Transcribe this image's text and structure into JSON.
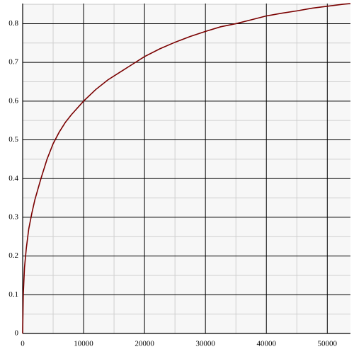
{
  "chart_data": {
    "type": "line",
    "x": [
      0,
      100,
      300,
      600,
      1000,
      1500,
      2000,
      3000,
      4000,
      5000,
      6000,
      7000,
      8000,
      10000,
      12000,
      14000,
      16000,
      18000,
      20000,
      22500,
      25000,
      27500,
      30000,
      32500,
      35000,
      37500,
      40000,
      42500,
      45000,
      47500,
      50000,
      52500,
      53800
    ],
    "series": [
      {
        "color": "#7a0000",
        "values": [
          0,
          0.1,
          0.17,
          0.22,
          0.27,
          0.31,
          0.345,
          0.4,
          0.45,
          0.49,
          0.52,
          0.545,
          0.565,
          0.6,
          0.63,
          0.655,
          0.675,
          0.695,
          0.715,
          0.735,
          0.752,
          0.767,
          0.78,
          0.792,
          0.8,
          0.81,
          0.82,
          0.827,
          0.833,
          0.84,
          0.845,
          0.85,
          0.852
        ]
      }
    ],
    "xlim": [
      0,
      53800
    ],
    "ylim": [
      0,
      0.852
    ],
    "xticks": [
      0,
      10000,
      20000,
      30000,
      40000,
      50000
    ],
    "yticks": [
      0,
      0.1,
      0.2,
      0.3,
      0.4,
      0.5,
      0.6,
      0.7,
      0.8
    ],
    "grid": true
  }
}
